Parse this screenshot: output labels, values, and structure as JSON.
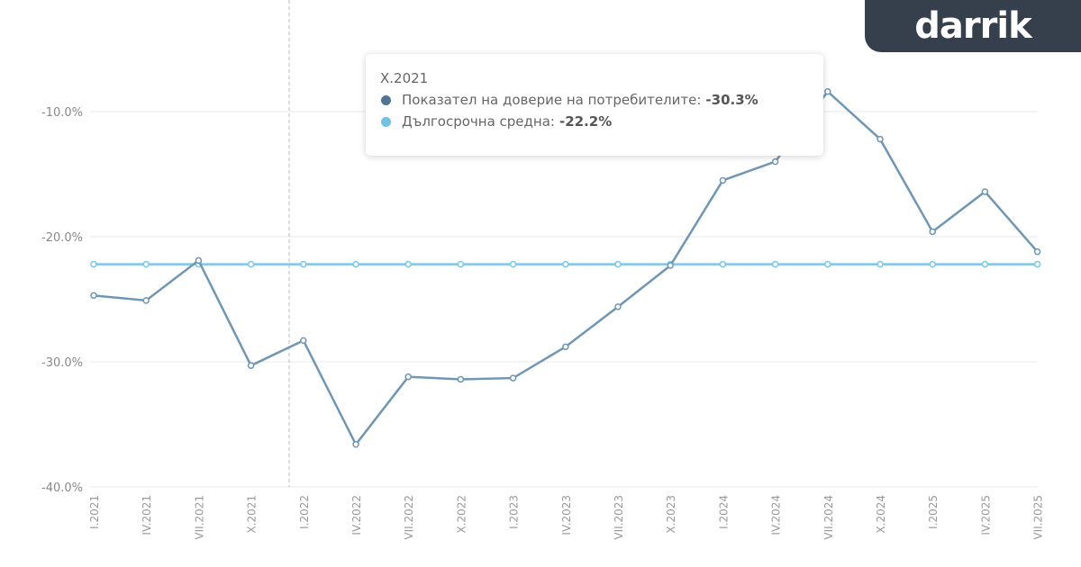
{
  "chart_data": {
    "type": "line",
    "categories": [
      "I.2021",
      "IV.2021",
      "VII.2021",
      "X.2021",
      "I.2022",
      "IV.2022",
      "VII.2022",
      "X.2022",
      "I.2023",
      "IV.2023",
      "VII.2023",
      "X.2023",
      "I.2024",
      "IV.2024",
      "VII.2024",
      "X.2024",
      "I.2025",
      "IV.2025",
      "VII.2025"
    ],
    "series": [
      {
        "name": "Показател на доверие на потребителите",
        "color": "#6f97b5",
        "values": [
          -24.7,
          -25.1,
          -21.9,
          -30.3,
          -28.3,
          -36.6,
          -31.2,
          -31.4,
          -31.3,
          -28.8,
          -25.6,
          -22.3,
          -15.5,
          -14.0,
          -8.4,
          -12.2,
          -19.6,
          -16.4,
          -21.2
        ]
      },
      {
        "name": "Дългосрочна средна",
        "color": "#7cc6ea",
        "values": [
          -22.2,
          -22.2,
          -22.2,
          -22.2,
          -22.2,
          -22.2,
          -22.2,
          -22.2,
          -22.2,
          -22.2,
          -22.2,
          -22.2,
          -22.2,
          -22.2,
          -22.2,
          -22.2,
          -22.2,
          -22.2,
          -22.2
        ]
      }
    ],
    "yticks": [
      "-10.0%",
      "-20.0%",
      "-30.0%",
      "-40.0%"
    ],
    "ytick_values": [
      -10,
      -20,
      -30,
      -40
    ],
    "ylim": [
      -40,
      -10
    ],
    "grid": true,
    "legend": "none"
  },
  "tooltip": {
    "title": "X.2021",
    "rows": [
      {
        "label": "Показател на доверие на потребителите:",
        "value": "-30.3%",
        "color": "#4f7496"
      },
      {
        "label": "Дългосрочна средна:",
        "value": "-22.2%",
        "color": "#72c0e4"
      }
    ]
  },
  "logo": {
    "text": "darrik"
  }
}
